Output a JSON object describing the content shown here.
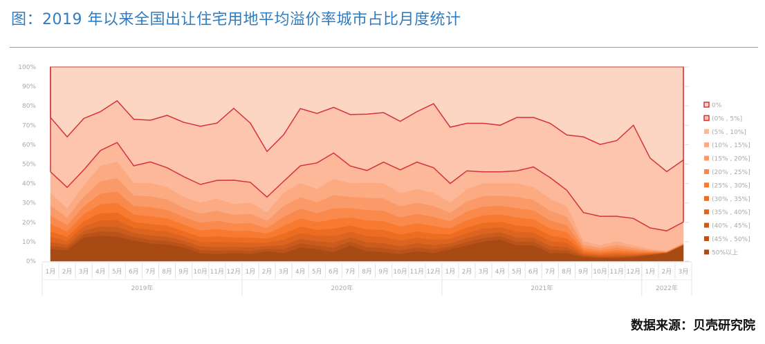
{
  "title": "图：2019 年以来全国出让住宅用地平均溢价率城市占比月度统计",
  "source": "数据来源：贝壳研究院",
  "chart_data": {
    "type": "area",
    "stacked": true,
    "percent_stacked": true,
    "grid": false,
    "legend_position": "right",
    "ylim": [
      0,
      100
    ],
    "yticks": [
      "0%",
      "10%",
      "20%",
      "30%",
      "40%",
      "50%",
      "60%",
      "70%",
      "80%",
      "90%",
      "100%"
    ],
    "years": [
      {
        "label": "2019年",
        "months": 12
      },
      {
        "label": "2020年",
        "months": 12
      },
      {
        "label": "2021年",
        "months": 12
      },
      {
        "label": "2022年",
        "months": 3
      }
    ],
    "categories": [
      "1月",
      "2月",
      "3月",
      "4月",
      "5月",
      "6月",
      "7月",
      "8月",
      "9月",
      "10月",
      "11月",
      "12月",
      "1月",
      "2月",
      "3月",
      "4月",
      "5月",
      "6月",
      "7月",
      "8月",
      "9月",
      "10月",
      "11月",
      "12月",
      "1月",
      "2月",
      "3月",
      "4月",
      "5月",
      "6月",
      "7月",
      "8月",
      "9月",
      "10月",
      "11月",
      "12月",
      "1月",
      "2月",
      "3月"
    ],
    "line_color": "#d6303a",
    "series": [
      {
        "name": "0%",
        "color": "#fdd5c3",
        "outlined": true,
        "values": [
          26,
          36,
          26.5,
          23,
          17.5,
          27,
          27.5,
          25,
          28.5,
          30.5,
          29,
          21.5,
          29,
          43.5,
          35,
          21.5,
          24,
          21,
          24.5,
          24.5,
          23.5,
          28,
          23,
          19,
          31,
          29,
          29,
          30,
          26,
          26,
          29,
          35,
          36,
          40,
          38,
          30,
          47,
          54,
          48
        ]
      },
      {
        "name": "(0% , 5%]",
        "color": "#fdc5ad",
        "outlined": true,
        "values": [
          28,
          26,
          26.5,
          20,
          21.5,
          24,
          21.5,
          27,
          28,
          30,
          29.5,
          37,
          30.5,
          23.5,
          24,
          29.5,
          25.5,
          23.5,
          26.5,
          29,
          25.5,
          25,
          26,
          33,
          29,
          24.5,
          25,
          24,
          27.5,
          25.5,
          28,
          28.5,
          39,
          37,
          39,
          48,
          36,
          30.5,
          32
        ]
      },
      {
        "name": "(5% , 10%]",
        "color": "#fcb899",
        "values": [
          11,
          11,
          8,
          8,
          10,
          9,
          11,
          10,
          10.5,
          9.5,
          9.5,
          12.5,
          10.5,
          8,
          6,
          9,
          13.5,
          13.5,
          9,
          6.5,
          11,
          12,
          14,
          13,
          10,
          9.5,
          6,
          6,
          6.5,
          10.5,
          11,
          8.5,
          15,
          15,
          13,
          14,
          11,
          10.5,
          11
        ]
      },
      {
        "name": "(10% , 15%]",
        "color": "#fbaa82",
        "values": [
          6.4,
          4.7,
          5.9,
          7.9,
          8.5,
          6.5,
          6.8,
          6.5,
          5.7,
          5.7,
          6.3,
          5.5,
          5.8,
          4.4,
          6.8,
          7.3,
          6.8,
          8.3,
          7.0,
          7.7,
          7.8,
          6.9,
          7.0,
          6.8,
          5.3,
          6.4,
          6.6,
          6.4,
          7.0,
          6.6,
          6.2,
          5.3,
          1.8,
          1.4,
          1.9,
          1.3,
          0.7,
          0.2,
          0.2
        ]
      },
      {
        "name": "(15% , 20%]",
        "color": "#fa9a68",
        "values": [
          5.2,
          3.9,
          4.9,
          6.5,
          6.9,
          5.3,
          5.6,
          5.3,
          4.7,
          4.7,
          5.1,
          4.5,
          4.8,
          3.6,
          5.6,
          5.9,
          5.6,
          6.8,
          5.8,
          6.3,
          6.4,
          5.7,
          5.8,
          5.6,
          4.3,
          5.2,
          5.4,
          5.2,
          5.8,
          5.4,
          5.0,
          4.3,
          1.4,
          1.2,
          1.5,
          1.1,
          0.5,
          0.2,
          0.2
        ]
      },
      {
        "name": "(20% , 25%]",
        "color": "#f98a4c",
        "values": [
          4.4,
          3.2,
          4.1,
          5.4,
          5.8,
          4.4,
          4.7,
          4.4,
          3.9,
          3.9,
          4.3,
          3.8,
          4.0,
          3.0,
          4.7,
          5.0,
          4.7,
          5.6,
          4.8,
          5.3,
          5.3,
          4.7,
          4.8,
          4.7,
          3.6,
          4.4,
          4.5,
          4.4,
          4.8,
          4.5,
          4.2,
          3.6,
          1.2,
          1.0,
          1.3,
          0.9,
          0.5,
          0.2,
          0.2
        ]
      },
      {
        "name": "(25% , 30%]",
        "color": "#f77a30",
        "values": [
          3.8,
          2.8,
          3.5,
          4.7,
          5.0,
          3.8,
          4.0,
          3.8,
          3.4,
          3.4,
          3.7,
          3.3,
          3.4,
          2.6,
          4.0,
          4.3,
          4.0,
          4.9,
          4.2,
          4.6,
          4.6,
          4.1,
          4.2,
          4.0,
          3.1,
          3.8,
          3.9,
          3.8,
          4.2,
          3.9,
          3.6,
          3.1,
          1.0,
          0.8,
          1.1,
          0.8,
          0.4,
          0.1,
          0.1
        ]
      },
      {
        "name": "(30% , 35%]",
        "color": "#ec6c22",
        "values": [
          2.9,
          2.2,
          2.7,
          3.6,
          3.9,
          3.0,
          3.1,
          3.0,
          2.6,
          2.6,
          2.9,
          2.5,
          2.7,
          2.0,
          3.1,
          3.3,
          3.1,
          3.8,
          3.2,
          3.5,
          3.6,
          3.2,
          3.2,
          3.1,
          2.4,
          2.9,
          3.0,
          2.9,
          3.2,
          3.0,
          2.8,
          2.4,
          0.8,
          0.7,
          0.9,
          0.6,
          0.3,
          0.1,
          0.1
        ]
      },
      {
        "name": "(35% , 40%]",
        "color": "#dc6420",
        "values": [
          2.6,
          1.9,
          2.4,
          3.2,
          3.5,
          2.7,
          2.8,
          2.7,
          2.3,
          2.3,
          2.6,
          2.3,
          2.4,
          1.8,
          2.8,
          3.0,
          2.8,
          3.4,
          2.9,
          3.2,
          3.2,
          2.8,
          2.9,
          2.8,
          2.2,
          2.6,
          2.7,
          2.6,
          2.9,
          2.7,
          2.5,
          2.2,
          0.7,
          0.6,
          0.8,
          0.5,
          0.3,
          0.1,
          0.1
        ]
      },
      {
        "name": "(40% , 45%]",
        "color": "#c95b1d",
        "values": [
          2.0,
          1.5,
          1.9,
          2.5,
          2.7,
          2.1,
          2.2,
          2.1,
          1.8,
          1.8,
          2.0,
          1.8,
          1.9,
          1.4,
          2.2,
          2.3,
          2.2,
          2.6,
          2.2,
          2.5,
          2.5,
          2.2,
          2.2,
          2.2,
          1.7,
          2.0,
          2.1,
          2.0,
          2.2,
          2.1,
          2.0,
          1.7,
          0.6,
          0.5,
          0.6,
          0.4,
          0.2,
          0.1,
          0.1
        ]
      },
      {
        "name": "(45% , 50%]",
        "color": "#ba531a",
        "values": [
          1.7,
          1.3,
          1.6,
          2.2,
          2.3,
          1.8,
          1.9,
          1.8,
          1.6,
          1.6,
          1.7,
          1.5,
          1.6,
          1.2,
          1.9,
          2.0,
          1.9,
          2.3,
          1.9,
          2.1,
          2.1,
          1.9,
          1.9,
          1.9,
          1.4,
          1.7,
          1.8,
          1.7,
          1.9,
          1.8,
          1.7,
          1.4,
          0.5,
          0.4,
          0.5,
          0.4,
          0.2,
          0.1,
          0.1
        ]
      },
      {
        "name": "50%以上",
        "color": "#a84a14",
        "values": [
          6,
          5.5,
          12,
          13,
          12.5,
          10.5,
          9,
          8.5,
          7,
          4,
          3.5,
          4,
          3.5,
          5,
          4,
          7,
          6,
          4.5,
          8,
          5,
          4.5,
          3.5,
          5,
          4,
          6,
          8,
          10,
          11,
          8,
          8,
          4,
          4,
          2,
          1.5,
          1.5,
          2,
          3,
          4,
          8
        ]
      }
    ]
  }
}
